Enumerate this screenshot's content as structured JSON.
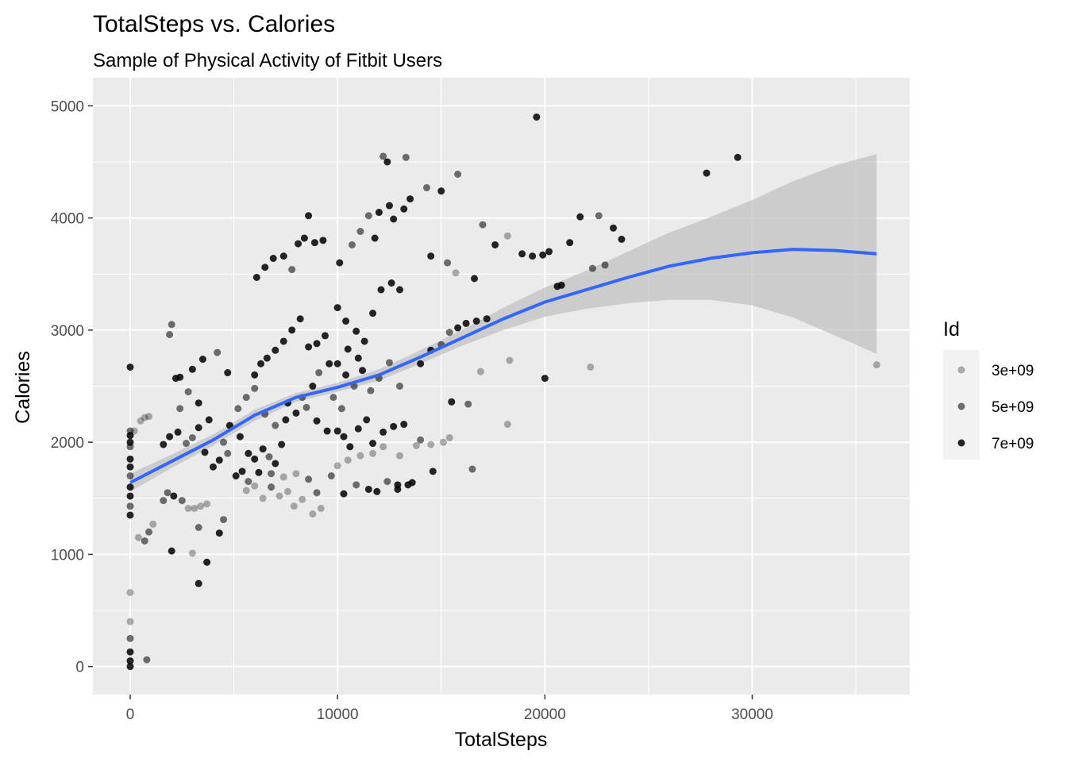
{
  "chart_data": {
    "type": "scatter",
    "title": "TotalSteps vs. Calories",
    "subtitle": "Sample of Physical Activity of Fitbit Users",
    "xlabel": "TotalSteps",
    "ylabel": "Calories",
    "xlim": [
      -1800,
      37600
    ],
    "ylim": [
      -250,
      5250
    ],
    "x_ticks": [
      0,
      10000,
      20000,
      30000
    ],
    "x_tick_labels": [
      "0",
      "10000",
      "20000",
      "30000"
    ],
    "y_ticks": [
      0,
      1000,
      2000,
      3000,
      4000,
      5000
    ],
    "y_tick_labels": [
      "0",
      "1000",
      "2000",
      "3000",
      "4000",
      "5000"
    ],
    "grid": true,
    "legend": {
      "title": "Id",
      "position": "right",
      "entries": [
        {
          "label": "3e+09",
          "alpha": 0.3
        },
        {
          "label": "5e+09",
          "alpha": 0.55
        },
        {
          "label": "7e+09",
          "alpha": 0.85
        }
      ]
    },
    "colors": {
      "panel": "#ebebeb",
      "grid": "#ffffff",
      "points": "#000000",
      "smooth_line": "#3366ff",
      "ribbon": "#bfbfbf"
    },
    "smooth": {
      "method": "loess",
      "x": [
        0,
        2000,
        4000,
        6000,
        8000,
        10000,
        12000,
        14000,
        16000,
        18000,
        20000,
        22000,
        24000,
        26000,
        28000,
        30000,
        32000,
        34000,
        36000
      ],
      "y": [
        1640,
        1830,
        2020,
        2240,
        2400,
        2490,
        2600,
        2760,
        2930,
        3100,
        3250,
        3360,
        3470,
        3570,
        3640,
        3690,
        3720,
        3710,
        3680
      ],
      "ymin": [
        1560,
        1770,
        1970,
        2190,
        2360,
        2450,
        2550,
        2700,
        2860,
        3000,
        3120,
        3190,
        3240,
        3270,
        3270,
        3220,
        3110,
        2950,
        2790
      ],
      "ymax": [
        1720,
        1890,
        2070,
        2290,
        2440,
        2530,
        2650,
        2820,
        3000,
        3200,
        3380,
        3530,
        3700,
        3870,
        4010,
        4160,
        4330,
        4470,
        4570
      ]
    },
    "points": [
      [
        0,
        0,
        2
      ],
      [
        0,
        50,
        2
      ],
      [
        0,
        130,
        2
      ],
      [
        0,
        250,
        1
      ],
      [
        0,
        400,
        0
      ],
      [
        0,
        660,
        0
      ],
      [
        800,
        60,
        1
      ],
      [
        0,
        1350,
        2
      ],
      [
        0,
        1430,
        1
      ],
      [
        0,
        1520,
        2
      ],
      [
        0,
        1600,
        2
      ],
      [
        0,
        1700,
        1
      ],
      [
        0,
        1780,
        2
      ],
      [
        0,
        1850,
        2
      ],
      [
        0,
        1960,
        1
      ],
      [
        0,
        2000,
        2
      ],
      [
        0,
        2060,
        2
      ],
      [
        0,
        2100,
        1
      ],
      [
        0,
        2670,
        2
      ],
      [
        200,
        2100,
        0
      ],
      [
        500,
        2190,
        0
      ],
      [
        700,
        2220,
        0
      ],
      [
        900,
        2230,
        0
      ],
      [
        400,
        1150,
        0
      ],
      [
        700,
        1120,
        1
      ],
      [
        900,
        1200,
        1
      ],
      [
        1100,
        1270,
        0
      ],
      [
        1600,
        1480,
        1
      ],
      [
        1800,
        1550,
        1
      ],
      [
        2100,
        1520,
        2
      ],
      [
        2500,
        1480,
        1
      ],
      [
        2800,
        1410,
        0
      ],
      [
        3100,
        1410,
        0
      ],
      [
        3400,
        1430,
        0
      ],
      [
        3700,
        1450,
        0
      ],
      [
        2000,
        1030,
        2
      ],
      [
        3000,
        1010,
        0
      ],
      [
        3300,
        740,
        2
      ],
      [
        3700,
        930,
        2
      ],
      [
        4300,
        1190,
        2
      ],
      [
        4500,
        1310,
        1
      ],
      [
        3300,
        1240,
        1
      ],
      [
        1900,
        2960,
        1
      ],
      [
        2000,
        3050,
        1
      ],
      [
        2200,
        2570,
        2
      ],
      [
        2400,
        2580,
        2
      ],
      [
        3000,
        2650,
        2
      ],
      [
        3500,
        2740,
        2
      ],
      [
        4200,
        2800,
        1
      ],
      [
        4700,
        2620,
        2
      ],
      [
        1600,
        1980,
        2
      ],
      [
        1900,
        2050,
        2
      ],
      [
        2300,
        2090,
        2
      ],
      [
        2700,
        1990,
        1
      ],
      [
        3000,
        2040,
        1
      ],
      [
        3300,
        2130,
        2
      ],
      [
        3600,
        1910,
        2
      ],
      [
        4000,
        1780,
        2
      ],
      [
        4300,
        1840,
        2
      ],
      [
        4700,
        1900,
        1
      ],
      [
        5100,
        1700,
        2
      ],
      [
        5400,
        1740,
        2
      ],
      [
        5700,
        1900,
        2
      ],
      [
        6000,
        1850,
        2
      ],
      [
        6400,
        1940,
        2
      ],
      [
        6700,
        1870,
        1
      ],
      [
        7000,
        1810,
        2
      ],
      [
        7300,
        1980,
        2
      ],
      [
        5600,
        1570,
        0
      ],
      [
        6000,
        1610,
        0
      ],
      [
        6400,
        1500,
        0
      ],
      [
        6800,
        1600,
        1
      ],
      [
        7200,
        1520,
        0
      ],
      [
        7600,
        1560,
        0
      ],
      [
        7900,
        1430,
        0
      ],
      [
        8300,
        1490,
        0
      ],
      [
        8800,
        1360,
        0
      ],
      [
        9200,
        1410,
        0
      ],
      [
        6000,
        2600,
        2
      ],
      [
        6300,
        2700,
        2
      ],
      [
        6600,
        2750,
        2
      ],
      [
        7000,
        2820,
        2
      ],
      [
        7400,
        2900,
        2
      ],
      [
        7800,
        3000,
        2
      ],
      [
        8200,
        3100,
        2
      ],
      [
        8600,
        2850,
        2
      ],
      [
        9000,
        2880,
        2
      ],
      [
        9400,
        2950,
        2
      ],
      [
        5200,
        2300,
        1
      ],
      [
        5600,
        2400,
        1
      ],
      [
        6000,
        2480,
        1
      ],
      [
        6500,
        2250,
        1
      ],
      [
        7000,
        2150,
        1
      ],
      [
        7500,
        2200,
        2
      ],
      [
        8000,
        2260,
        2
      ],
      [
        8500,
        2310,
        1
      ],
      [
        9000,
        2190,
        2
      ],
      [
        9500,
        2100,
        2
      ],
      [
        6100,
        3470,
        2
      ],
      [
        6500,
        3560,
        2
      ],
      [
        6900,
        3640,
        2
      ],
      [
        7400,
        3660,
        2
      ],
      [
        7800,
        3540,
        1
      ],
      [
        8100,
        3770,
        2
      ],
      [
        8400,
        3820,
        2
      ],
      [
        8600,
        4020,
        2
      ],
      [
        8900,
        3780,
        2
      ],
      [
        9300,
        3800,
        2
      ],
      [
        10100,
        3600,
        2
      ],
      [
        10700,
        3760,
        1
      ],
      [
        11100,
        3880,
        1
      ],
      [
        11500,
        4020,
        1
      ],
      [
        11800,
        3820,
        2
      ],
      [
        12200,
        4550,
        1
      ],
      [
        12400,
        4500,
        2
      ],
      [
        13300,
        4540,
        1
      ],
      [
        12000,
        4050,
        2
      ],
      [
        12500,
        4110,
        2
      ],
      [
        12700,
        3990,
        2
      ],
      [
        13200,
        4080,
        2
      ],
      [
        13500,
        4170,
        2
      ],
      [
        14300,
        4270,
        1
      ],
      [
        15000,
        4240,
        2
      ],
      [
        15800,
        4390,
        1
      ],
      [
        10000,
        3200,
        2
      ],
      [
        10400,
        3080,
        2
      ],
      [
        10900,
        2990,
        2
      ],
      [
        11300,
        2900,
        2
      ],
      [
        11700,
        3150,
        2
      ],
      [
        12100,
        3360,
        2
      ],
      [
        12600,
        3420,
        2
      ],
      [
        13000,
        3360,
        2
      ],
      [
        10000,
        2700,
        2
      ],
      [
        10400,
        2600,
        2
      ],
      [
        10800,
        2500,
        1
      ],
      [
        11200,
        2640,
        2
      ],
      [
        11600,
        2460,
        1
      ],
      [
        12000,
        2570,
        1
      ],
      [
        12500,
        2710,
        1
      ],
      [
        13000,
        2500,
        1
      ],
      [
        10000,
        2100,
        2
      ],
      [
        10300,
        2050,
        2
      ],
      [
        10600,
        1960,
        2
      ],
      [
        11000,
        2120,
        2
      ],
      [
        11400,
        2200,
        2
      ],
      [
        11700,
        1990,
        2
      ],
      [
        12200,
        2090,
        2
      ],
      [
        12700,
        2140,
        2
      ],
      [
        13200,
        2160,
        2
      ],
      [
        9700,
        1700,
        1
      ],
      [
        10300,
        1540,
        2
      ],
      [
        10900,
        1620,
        1
      ],
      [
        11500,
        1580,
        2
      ],
      [
        11900,
        1560,
        2
      ],
      [
        12400,
        1650,
        1
      ],
      [
        12900,
        1620,
        2
      ],
      [
        13600,
        1640,
        2
      ],
      [
        10000,
        1790,
        0
      ],
      [
        10500,
        1840,
        0
      ],
      [
        11100,
        1880,
        0
      ],
      [
        11700,
        1900,
        0
      ],
      [
        12200,
        1960,
        0
      ],
      [
        13000,
        1880,
        0
      ],
      [
        13800,
        1970,
        0
      ],
      [
        14500,
        1980,
        0
      ],
      [
        15100,
        2000,
        0
      ],
      [
        15400,
        2040,
        0
      ],
      [
        14000,
        2020,
        1
      ],
      [
        14600,
        1740,
        2
      ],
      [
        15500,
        2360,
        2
      ],
      [
        16300,
        2340,
        1
      ],
      [
        16500,
        1760,
        1
      ],
      [
        16900,
        2630,
        0
      ],
      [
        18200,
        2160,
        0
      ],
      [
        18300,
        2730,
        0
      ],
      [
        14000,
        2700,
        2
      ],
      [
        14500,
        2820,
        2
      ],
      [
        15000,
        2870,
        1
      ],
      [
        15400,
        2980,
        1
      ],
      [
        15800,
        3020,
        2
      ],
      [
        16200,
        3060,
        2
      ],
      [
        16700,
        3080,
        2
      ],
      [
        17200,
        3100,
        2
      ],
      [
        14500,
        3660,
        2
      ],
      [
        15300,
        3600,
        1
      ],
      [
        15700,
        3510,
        0
      ],
      [
        16600,
        3460,
        2
      ],
      [
        17000,
        3940,
        1
      ],
      [
        17600,
        3760,
        2
      ],
      [
        18200,
        3840,
        0
      ],
      [
        18900,
        3680,
        2
      ],
      [
        19400,
        3660,
        2
      ],
      [
        19600,
        4900,
        2
      ],
      [
        19900,
        3670,
        2
      ],
      [
        20200,
        3700,
        2
      ],
      [
        20600,
        3390,
        2
      ],
      [
        20800,
        3400,
        2
      ],
      [
        21200,
        3780,
        2
      ],
      [
        21700,
        4010,
        2
      ],
      [
        22300,
        3550,
        1
      ],
      [
        22600,
        4020,
        1
      ],
      [
        22900,
        3580,
        1
      ],
      [
        23300,
        3910,
        2
      ],
      [
        23700,
        3810,
        2
      ],
      [
        20000,
        2570,
        2
      ],
      [
        22200,
        2670,
        0
      ],
      [
        27800,
        4400,
        2
      ],
      [
        29300,
        4540,
        2
      ],
      [
        36000,
        2690,
        0
      ],
      [
        9800,
        2400,
        1
      ],
      [
        10200,
        2300,
        1
      ],
      [
        8300,
        2400,
        1
      ],
      [
        8800,
        2500,
        2
      ],
      [
        7600,
        2350,
        2
      ],
      [
        9100,
        2620,
        1
      ],
      [
        9600,
        2700,
        2
      ],
      [
        10500,
        2830,
        2
      ],
      [
        11000,
        2750,
        2
      ],
      [
        4800,
        2150,
        2
      ],
      [
        4500,
        2000,
        1
      ],
      [
        5300,
        2050,
        2
      ],
      [
        3800,
        2200,
        2
      ],
      [
        3300,
        2350,
        2
      ],
      [
        2800,
        2450,
        1
      ],
      [
        2400,
        2300,
        1
      ],
      [
        9000,
        1550,
        1
      ],
      [
        8600,
        1670,
        1
      ],
      [
        8000,
        1720,
        0
      ],
      [
        7400,
        1690,
        0
      ],
      [
        6800,
        1720,
        1
      ],
      [
        6200,
        1730,
        2
      ],
      [
        5700,
        1650,
        1
      ],
      [
        12900,
        1580,
        2
      ],
      [
        13400,
        1620,
        2
      ]
    ]
  }
}
